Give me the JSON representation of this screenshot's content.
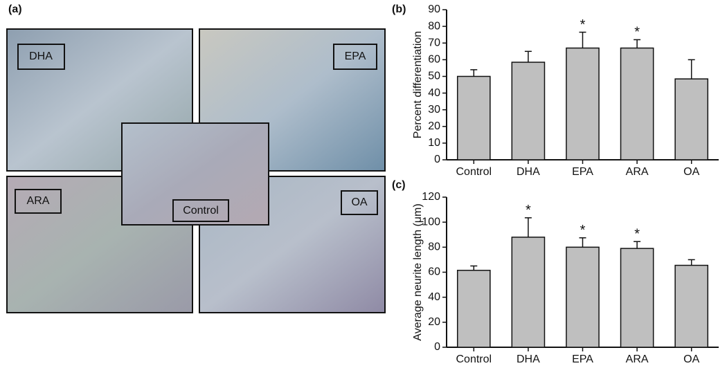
{
  "panel_a": {
    "label": "(a)",
    "images": [
      {
        "label": "DHA"
      },
      {
        "label": "EPA"
      },
      {
        "label": "ARA"
      },
      {
        "label": "OA"
      },
      {
        "label": "Control"
      }
    ]
  },
  "chart_data": [
    {
      "type": "bar",
      "panel_label": "(b)",
      "y_label": "Percent differentiation",
      "categories": [
        "Control",
        "DHA",
        "EPA",
        "ARA",
        "OA"
      ],
      "values": [
        50,
        58.5,
        67,
        67,
        48.5
      ],
      "errors": [
        4,
        6.5,
        9.5,
        5,
        11.5
      ],
      "color": "#bfbfbf",
      "ylim": [
        0,
        90
      ],
      "yticks": [
        0,
        10,
        20,
        30,
        40,
        50,
        60,
        70,
        80,
        90
      ],
      "annotations": [
        {
          "text": "*",
          "category": "EPA"
        },
        {
          "text": "*",
          "category": "ARA"
        }
      ]
    },
    {
      "type": "bar",
      "panel_label": "(c)",
      "y_label": "Average neurite length (μm)",
      "categories": [
        "Control",
        "DHA",
        "EPA",
        "ARA",
        "OA"
      ],
      "values": [
        61.5,
        88,
        80,
        79,
        65.5
      ],
      "errors": [
        3.5,
        15.5,
        7.5,
        5.5,
        4.5
      ],
      "color": "#bfbfbf",
      "ylim": [
        0,
        120
      ],
      "yticks": [
        0,
        20,
        40,
        60,
        80,
        100,
        120
      ],
      "annotations": [
        {
          "text": "*",
          "category": "DHA"
        },
        {
          "text": "*",
          "category": "EPA"
        },
        {
          "text": "*",
          "category": "ARA"
        }
      ]
    }
  ]
}
